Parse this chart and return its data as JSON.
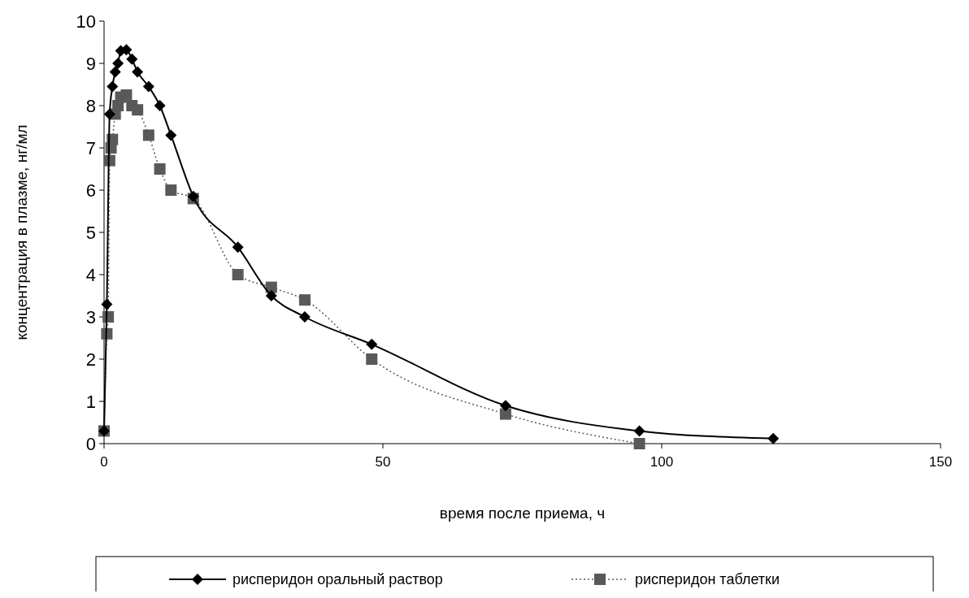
{
  "chart_data": {
    "type": "line",
    "xlabel": "время после приема, ч",
    "ylabel": "концентрация в плазме, нг/мл",
    "xlim": [
      0,
      150
    ],
    "xticks": [
      0,
      50,
      100,
      150
    ],
    "ylim": [
      0,
      10
    ],
    "yticks": [
      0,
      1,
      2,
      3,
      4,
      5,
      6,
      7,
      8,
      9,
      10
    ],
    "grid": false,
    "legend": "bottom",
    "series": [
      {
        "name": "рисперидон оральный раствор",
        "color": "#000000",
        "marker": "diamond",
        "line_style": "solid",
        "x": [
          0,
          0.5,
          1,
          1.5,
          2,
          2.5,
          3,
          4,
          5,
          6,
          8,
          10,
          12,
          16,
          24,
          30,
          36,
          48,
          72,
          96,
          120
        ],
        "values": [
          0.3,
          3.3,
          7.8,
          8.45,
          8.8,
          9.0,
          9.3,
          9.32,
          9.1,
          8.8,
          8.45,
          8.0,
          7.3,
          5.85,
          4.65,
          3.5,
          3.0,
          2.35,
          0.9,
          0.3,
          0.12
        ]
      },
      {
        "name": "рисперидон таблетки",
        "color": "#595959",
        "marker": "square",
        "line_style": "dotted",
        "x": [
          0,
          0.5,
          0.75,
          1,
          1.25,
          1.5,
          2,
          2.5,
          3,
          4,
          5,
          6,
          8,
          10,
          12,
          16,
          24,
          30,
          36,
          48,
          72,
          96
        ],
        "values": [
          0.3,
          2.6,
          3.0,
          6.7,
          7.0,
          7.2,
          7.8,
          8.0,
          8.2,
          8.25,
          8.0,
          7.9,
          7.3,
          6.5,
          6.0,
          5.8,
          4.0,
          3.7,
          3.4,
          2.0,
          0.7,
          0
        ]
      }
    ]
  }
}
